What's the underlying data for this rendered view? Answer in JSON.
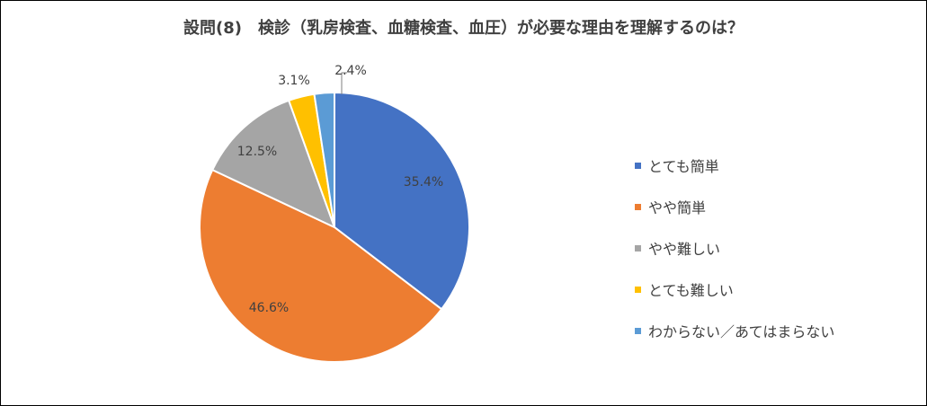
{
  "chart_data": {
    "type": "pie",
    "title": "設問(8)　検診（乳房検査、血糖検査、血圧）が必要な理由を理解するのは？",
    "legend_position": "right",
    "slices": [
      {
        "label": "とても簡単",
        "value": 35.4,
        "display": "35.4%",
        "color": "#4472C4"
      },
      {
        "label": "やや簡単",
        "value": 46.6,
        "display": "46.6%",
        "color": "#ED7D31"
      },
      {
        "label": "やや難しい",
        "value": 12.5,
        "display": "12.5%",
        "color": "#A5A5A5"
      },
      {
        "label": "とても難しい",
        "value": 3.1,
        "display": "3.1%",
        "color": "#FFC000"
      },
      {
        "label": "わからない／あてはまらない",
        "value": 2.4,
        "display": "2.4%",
        "color": "#5B9BD5"
      }
    ]
  }
}
